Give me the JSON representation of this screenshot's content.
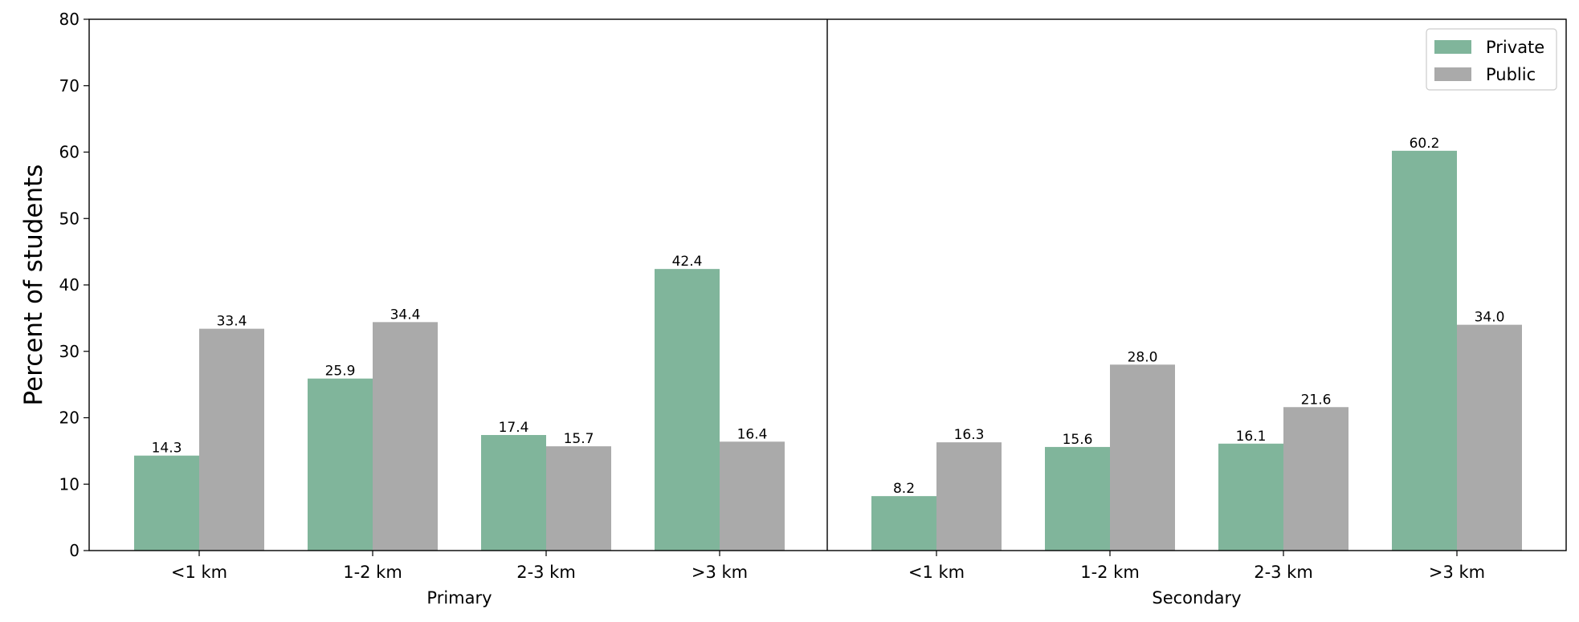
{
  "chart_data": {
    "type": "bar",
    "ylabel": "Percent of students",
    "ylim": [
      0,
      80
    ],
    "yticks": [
      0,
      10,
      20,
      30,
      40,
      50,
      60,
      70,
      80
    ],
    "grid": false,
    "legend_position": "top-right",
    "series_names": [
      "Private",
      "Public"
    ],
    "colors": {
      "Private": "#80b59b",
      "Public": "#aaaaaa"
    },
    "groups": [
      {
        "name": "Primary",
        "categories": [
          "<1 km",
          "1-2 km",
          "2-3 km",
          ">3 km"
        ],
        "series": [
          {
            "name": "Private",
            "values": [
              14.3,
              25.9,
              17.4,
              42.4
            ],
            "labels": [
              "14.3",
              "25.9",
              "17.4",
              "42.4"
            ]
          },
          {
            "name": "Public",
            "values": [
              33.4,
              34.4,
              15.7,
              16.4
            ],
            "labels": [
              "33.4",
              "34.4",
              "15.7",
              "16.4"
            ]
          }
        ]
      },
      {
        "name": "Secondary",
        "categories": [
          "<1 km",
          "1-2 km",
          "2-3 km",
          ">3 km"
        ],
        "series": [
          {
            "name": "Private",
            "values": [
              8.2,
              15.6,
              16.1,
              60.2
            ],
            "labels": [
              "8.2",
              "15.6",
              "16.1",
              "60.2"
            ]
          },
          {
            "name": "Public",
            "values": [
              16.3,
              28.0,
              21.6,
              34.0
            ],
            "labels": [
              "16.3",
              "28.0",
              "21.6",
              "34.0"
            ]
          }
        ]
      }
    ]
  }
}
